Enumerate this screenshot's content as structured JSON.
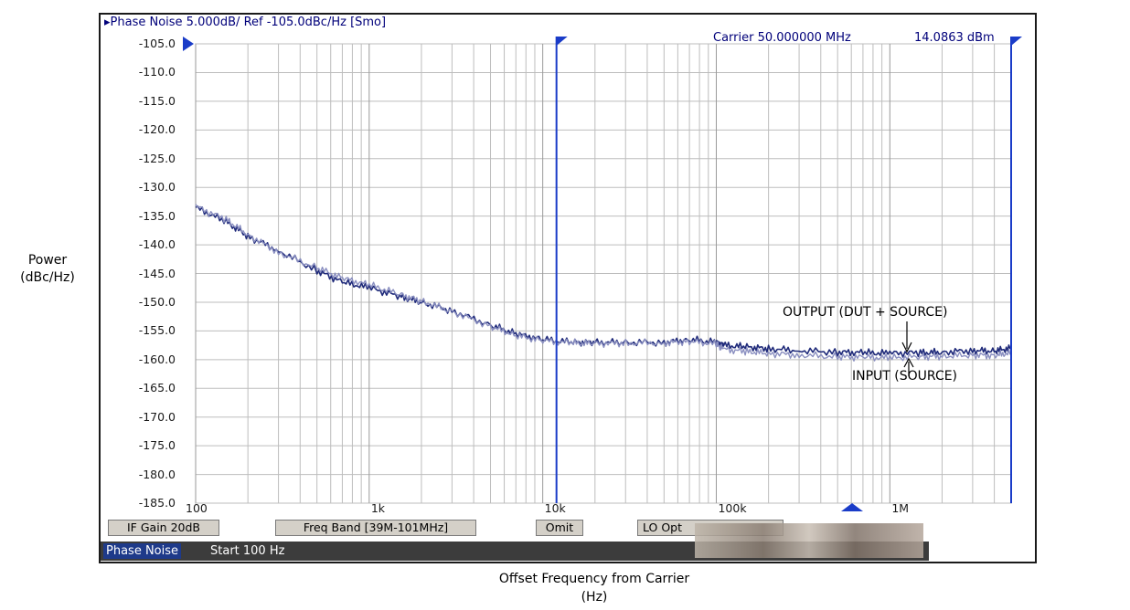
{
  "header": {
    "title": "Phase Noise 5.000dB/ Ref -105.0dBc/Hz [Smo]",
    "carrier": "Carrier 50.000000 MHz",
    "carrier_power": "14.0863 dBm"
  },
  "softkeys": [
    "IF Gain 20dB",
    "Freq Band [39M-101MHz]",
    "Omit",
    "LO Opt"
  ],
  "status": {
    "mode": "Phase Noise",
    "start": "Start 100 Hz"
  },
  "axis_labels": {
    "y_line1": "Power",
    "y_line2": "(dBc/Hz)",
    "x_line1": "Offset Frequency from Carrier",
    "x_line2": "(Hz)"
  },
  "annotations": {
    "output": "OUTPUT (DUT + SOURCE)",
    "input": "INPUT (SOURCE)"
  },
  "colors": {
    "trace_output": "#1f2a7a",
    "trace_input": "#8a8fc0",
    "marker": "#1a3cc8",
    "grid": "#bdbdbd"
  },
  "chart_data": {
    "type": "line",
    "x_scale": "log",
    "xlim": [
      100,
      5000000
    ],
    "ylim": [
      -185,
      -105
    ],
    "y_ticks": [
      -105,
      -110,
      -115,
      -120,
      -125,
      -130,
      -135,
      -140,
      -145,
      -150,
      -155,
      -160,
      -165,
      -170,
      -175,
      -180,
      -185
    ],
    "y_tick_labels": [
      "-105.0",
      "-110.0",
      "-115.0",
      "-120.0",
      "-125.0",
      "-130.0",
      "-135.0",
      "-140.0",
      "-145.0",
      "-150.0",
      "-155.0",
      "-160.0",
      "-165.0",
      "-170.0",
      "-175.0",
      "-180.0",
      "-185.0"
    ],
    "x_ticks": [
      100,
      1000,
      10000,
      100000,
      1000000
    ],
    "x_tick_labels": [
      "100",
      "1k",
      "10k",
      "100k",
      "1M"
    ],
    "grid": true,
    "markers": [
      12000,
      5000000
    ],
    "series": [
      {
        "x": [
          100,
          150,
          200,
          300,
          500,
          700,
          1000,
          1500,
          2000,
          3000,
          5000,
          7000,
          10000,
          15000,
          20000,
          30000,
          50000,
          70000,
          100000,
          110000,
          150000,
          200000,
          300000,
          500000,
          700000,
          1000000,
          1500000,
          2000000,
          3000000,
          4000000,
          5000000
        ],
        "values": [
          -133.5,
          -136.0,
          -138.5,
          -141.0,
          -144.5,
          -146.5,
          -147.5,
          -149.0,
          -150.0,
          -151.5,
          -154.0,
          -155.5,
          -156.5,
          -157.0,
          -157.0,
          -157.0,
          -157.0,
          -156.5,
          -157.0,
          -157.5,
          -157.8,
          -158.1,
          -158.4,
          -158.7,
          -158.8,
          -158.9,
          -158.8,
          -158.7,
          -158.4,
          -158.5,
          -158.0
        ]
      },
      {
        "x": [
          100,
          150,
          200,
          300,
          500,
          700,
          1000,
          1500,
          2000,
          3000,
          5000,
          7000,
          10000,
          15000,
          20000,
          30000,
          50000,
          70000,
          100000,
          110000,
          150000,
          200000,
          300000,
          500000,
          700000,
          1000000,
          1500000,
          2000000,
          3000000,
          4000000,
          5000000
        ],
        "values": [
          -133.3,
          -135.6,
          -138.2,
          -141.3,
          -144.0,
          -145.8,
          -147.0,
          -148.6,
          -149.8,
          -151.6,
          -154.2,
          -155.8,
          -156.7,
          -157.1,
          -157.2,
          -157.1,
          -157.1,
          -156.8,
          -157.3,
          -158.2,
          -158.6,
          -158.9,
          -159.2,
          -159.5,
          -159.6,
          -159.7,
          -159.5,
          -159.4,
          -159.2,
          -159.3,
          -158.8
        ]
      }
    ]
  }
}
